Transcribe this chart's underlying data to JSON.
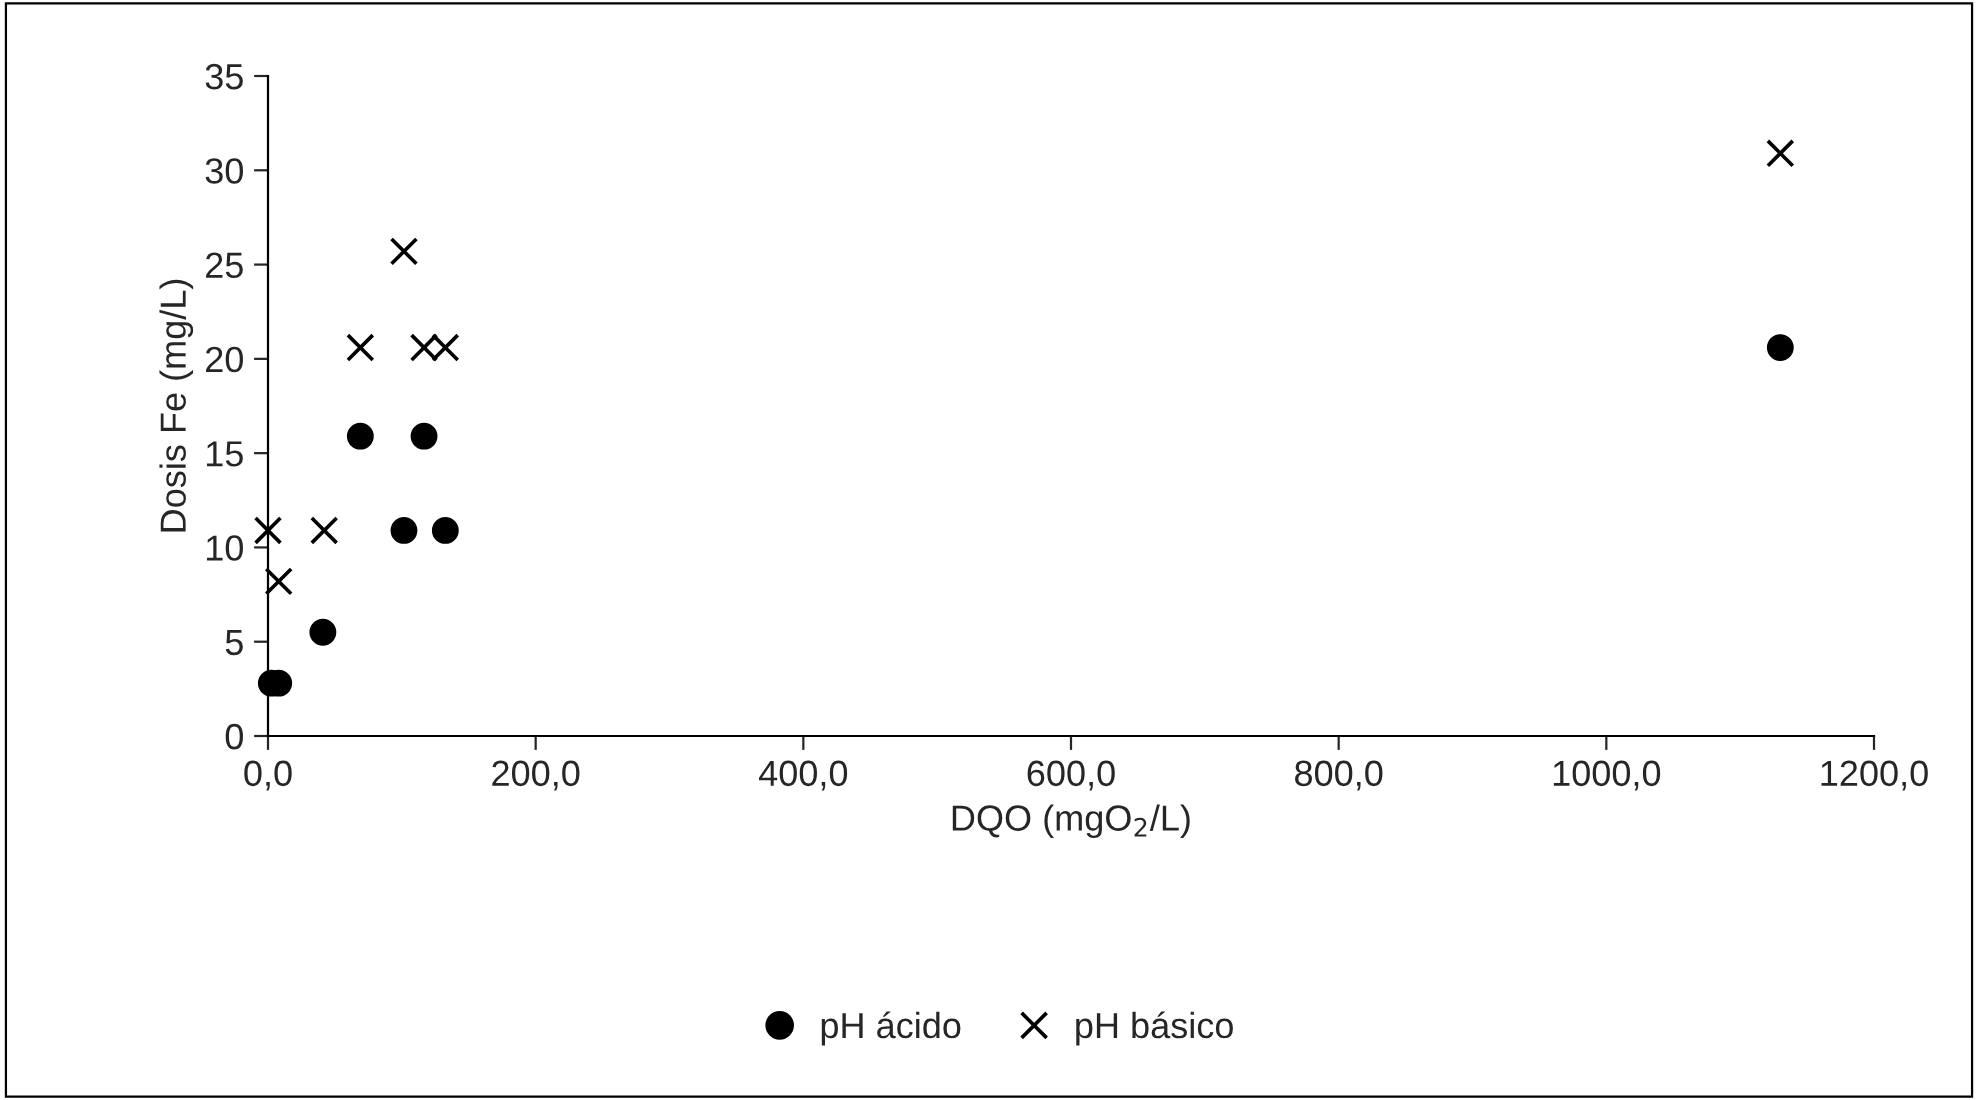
{
  "chart_data": {
    "type": "scatter",
    "xlabel": "DQO (mgO$_{2}$/L)",
    "ylabel": "Dosis Fe (mg/L)",
    "series": [
      {
        "name": "pH ácido",
        "color": "#000000",
        "marker": "circle",
        "x": [
          2.5,
          8,
          41,
          69,
          116.6,
          101.6,
          132.5,
          1130
        ],
        "values": [
          2.8,
          2.8,
          5.5,
          15.9,
          15.9,
          10.9,
          10.9,
          20.6
        ]
      },
      {
        "name": "pH básico",
        "color": "#000000",
        "marker": "cross",
        "x": [
          0,
          8,
          42,
          69,
          101.6,
          116.6,
          132.5,
          1130
        ],
        "values": [
          10.9,
          8.2,
          10.9,
          20.6,
          25.7,
          20.6,
          20.6,
          30.9
        ]
      }
    ],
    "xlim": [
      0,
      1200
    ],
    "xticks": [
      {
        "value": 0,
        "label": "0,0"
      },
      {
        "value": 200,
        "label": "200,0"
      },
      {
        "value": 400,
        "label": "400,0"
      },
      {
        "value": 600,
        "label": "600,0"
      },
      {
        "value": 800,
        "label": "800,0"
      },
      {
        "value": 1000,
        "label": "1000,0"
      },
      {
        "value": 1200,
        "label": "1200,0"
      }
    ],
    "ylim": [
      0,
      35
    ],
    "yticks": [
      0,
      5,
      10,
      15,
      20,
      25,
      30,
      35
    ],
    "grid": false,
    "legend": "bottom"
  }
}
